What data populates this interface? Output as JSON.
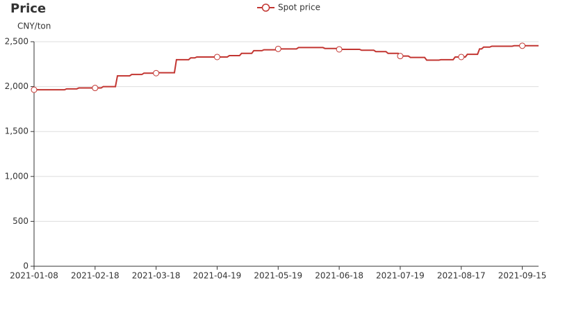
{
  "chart_data": {
    "type": "line",
    "title": "Price",
    "y_axis_label": "CNY/ton",
    "categories": [
      "2021-01-08",
      null,
      null,
      null,
      null,
      null,
      null,
      null,
      null,
      null,
      null,
      null,
      null,
      null,
      null,
      null,
      null,
      null,
      null,
      null,
      null,
      null,
      null,
      null,
      null,
      null,
      null,
      null,
      null,
      null,
      "2021-02-18",
      null,
      null,
      null,
      null,
      null,
      null,
      null,
      null,
      null,
      null,
      null,
      null,
      null,
      null,
      null,
      null,
      null,
      null,
      null,
      null,
      null,
      null,
      null,
      null,
      null,
      null,
      null,
      null,
      null,
      "2021-03-18",
      null,
      null,
      null,
      null,
      null,
      null,
      null,
      null,
      null,
      null,
      null,
      null,
      null,
      null,
      null,
      null,
      null,
      null,
      null,
      null,
      null,
      null,
      null,
      null,
      null,
      null,
      null,
      null,
      null,
      "2021-04-19",
      null,
      null,
      null,
      null,
      null,
      null,
      null,
      null,
      null,
      null,
      null,
      null,
      null,
      null,
      null,
      null,
      null,
      null,
      null,
      null,
      null,
      null,
      null,
      null,
      null,
      null,
      null,
      null,
      null,
      "2021-05-19",
      null,
      null,
      null,
      null,
      null,
      null,
      null,
      null,
      null,
      null,
      null,
      null,
      null,
      null,
      null,
      null,
      null,
      null,
      null,
      null,
      null,
      null,
      null,
      null,
      null,
      null,
      null,
      null,
      null,
      "2021-06-18",
      null,
      null,
      null,
      null,
      null,
      null,
      null,
      null,
      null,
      null,
      null,
      null,
      null,
      null,
      null,
      null,
      null,
      null,
      null,
      null,
      null,
      null,
      null,
      null,
      null,
      null,
      null,
      null,
      null,
      "2021-07-19",
      null,
      null,
      null,
      null,
      null,
      null,
      null,
      null,
      null,
      null,
      null,
      null,
      null,
      null,
      null,
      null,
      null,
      null,
      null,
      null,
      null,
      null,
      null,
      null,
      null,
      null,
      null,
      null,
      null,
      "2021-08-17",
      null,
      null,
      null,
      null,
      null,
      null,
      null,
      null,
      null,
      null,
      null,
      null,
      null,
      null,
      null,
      null,
      null,
      null,
      null,
      null,
      null,
      null,
      null,
      null,
      null,
      null,
      null,
      null,
      null,
      "2021-09-15",
      null,
      null,
      null,
      null,
      null,
      null,
      null,
      null
    ],
    "series": [
      {
        "name": "Spot price",
        "color": "#c23531",
        "values": [
          1965,
          1965,
          1965,
          1965,
          1965,
          1965,
          1965,
          1965,
          1965,
          1965,
          1965,
          1965,
          1965,
          1965,
          1965,
          1965,
          1975,
          1975,
          1975,
          1975,
          1975,
          1975,
          1985,
          1985,
          1985,
          1985,
          1985,
          1985,
          1985,
          1985,
          1985,
          1985,
          1985,
          1985,
          2000,
          2000,
          2000,
          2000,
          2000,
          2000,
          2000,
          2120,
          2120,
          2120,
          2120,
          2120,
          2120,
          2120,
          2135,
          2135,
          2135,
          2135,
          2135,
          2135,
          2150,
          2150,
          2150,
          2150,
          2150,
          2150,
          2150,
          2155,
          2155,
          2155,
          2155,
          2155,
          2155,
          2155,
          2155,
          2155,
          2300,
          2300,
          2300,
          2300,
          2300,
          2300,
          2300,
          2320,
          2320,
          2320,
          2330,
          2330,
          2330,
          2330,
          2330,
          2330,
          2330,
          2330,
          2330,
          2330,
          2330,
          2330,
          2330,
          2330,
          2330,
          2330,
          2345,
          2345,
          2345,
          2345,
          2345,
          2345,
          2370,
          2370,
          2370,
          2370,
          2370,
          2370,
          2400,
          2400,
          2400,
          2400,
          2400,
          2410,
          2410,
          2410,
          2410,
          2410,
          2410,
          2410,
          2420,
          2420,
          2420,
          2420,
          2420,
          2420,
          2420,
          2420,
          2420,
          2420,
          2435,
          2435,
          2435,
          2435,
          2435,
          2435,
          2435,
          2435,
          2435,
          2435,
          2435,
          2435,
          2435,
          2425,
          2425,
          2425,
          2425,
          2425,
          2425,
          2425,
          2415,
          2415,
          2415,
          2415,
          2415,
          2415,
          2415,
          2415,
          2415,
          2415,
          2415,
          2405,
          2405,
          2405,
          2405,
          2405,
          2405,
          2405,
          2390,
          2390,
          2390,
          2390,
          2390,
          2390,
          2370,
          2370,
          2370,
          2370,
          2370,
          2370,
          2340,
          2340,
          2340,
          2340,
          2340,
          2325,
          2325,
          2325,
          2325,
          2325,
          2325,
          2325,
          2325,
          2295,
          2295,
          2295,
          2295,
          2295,
          2295,
          2295,
          2300,
          2300,
          2300,
          2300,
          2300,
          2300,
          2300,
          2330,
          2330,
          2330,
          2330,
          2330,
          2330,
          2360,
          2360,
          2360,
          2360,
          2360,
          2360,
          2420,
          2420,
          2440,
          2440,
          2440,
          2440,
          2450,
          2450,
          2450,
          2450,
          2450,
          2450,
          2450,
          2450,
          2450,
          2450,
          2450,
          2455,
          2455,
          2455,
          2455,
          2455,
          2455,
          2455,
          2455,
          2455,
          2455,
          2455,
          2455,
          2455
        ]
      }
    ],
    "ylim": [
      0,
      2500
    ],
    "yticks": [
      0,
      {
        "value": 500,
        "label": "500"
      },
      {
        "value": 1000,
        "label": "1,000"
      },
      {
        "value": 1500,
        "label": "1,500"
      },
      {
        "value": 2000,
        "label": "2,000"
      },
      {
        "value": 2500,
        "label": "2,500"
      }
    ],
    "grid": true,
    "legend": "top"
  }
}
